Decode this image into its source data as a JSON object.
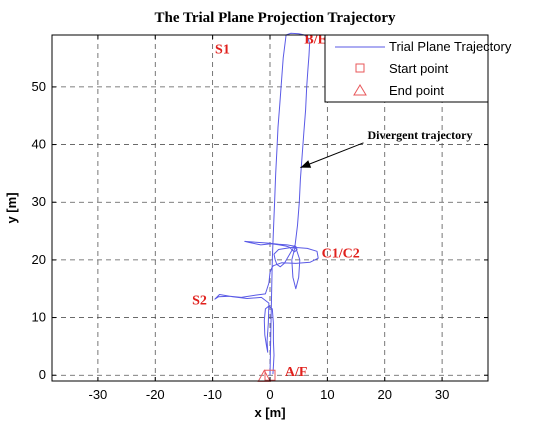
{
  "chart_data": {
    "type": "line",
    "title": "The Trial Plane Projection Trajectory",
    "xlabel": "x [m]",
    "ylabel": "y [m]",
    "xlim": [
      -38,
      38
    ],
    "ylim": [
      -1,
      59
    ],
    "xticks": [
      -30,
      -20,
      -10,
      0,
      10,
      20,
      30
    ],
    "yticks": [
      0,
      10,
      20,
      30,
      40,
      50
    ],
    "grid": true,
    "legend_position": "top-right",
    "colors": {
      "trajectory": "#5a5ae6",
      "markers": "#e8575a",
      "annotation": "#e0201c"
    },
    "series": [
      {
        "name": "Trial Plane Trajectory",
        "x": [
          0.5,
          0.6,
          0.7,
          0.6,
          0.6,
          0.4,
          -0.2,
          -0.8,
          -1.0,
          -0.9,
          -0.6,
          -0.4,
          -0.5,
          -0.3,
          -0.2,
          -1.5,
          -4.0,
          -6.5,
          -8.8,
          -9.6,
          -9.0,
          -7.0,
          -5.0,
          -2.5,
          -0.8,
          -0.2,
          0.0,
          0.3,
          0.6,
          2.0,
          4.5,
          7.0,
          8.4,
          8.2,
          6.5,
          4.0,
          1.5,
          0.7,
          0.9,
          1.2,
          1.8,
          2.5,
          3.2,
          3.9,
          4.3,
          4.6,
          4.7,
          4.3,
          4.0,
          3.4,
          2.8,
          1.6,
          0.2,
          -1.6,
          -3.5,
          -4.4,
          -3.0,
          -1.5,
          0.0,
          1.5,
          3.0,
          4.2,
          4.6,
          5.2,
          5.0,
          4.5,
          4.0,
          3.8,
          4.3,
          4.8,
          5.1,
          5.3,
          5.6,
          5.9,
          6.2,
          6.4,
          6.6,
          6.8,
          6.9,
          6.6,
          6.0,
          5.0,
          3.6,
          2.8,
          2.3,
          2.0,
          1.7,
          1.4,
          1.2,
          1.0,
          0.8,
          0.6,
          0.4,
          0.2,
          0.0
        ],
        "y": [
          0.2,
          1.5,
          3.5,
          6.0,
          9.0,
          11.5,
          12.0,
          11.5,
          9.5,
          7.0,
          5.0,
          4.0,
          6.0,
          9.0,
          12.5,
          13.5,
          13.3,
          13.6,
          14.0,
          13.2,
          13.6,
          13.7,
          13.5,
          13.9,
          14.1,
          16.0,
          17.8,
          18.6,
          19.0,
          19.5,
          19.4,
          19.6,
          20.3,
          21.5,
          22.0,
          22.2,
          21.8,
          21.0,
          20.0,
          19.2,
          18.8,
          19.4,
          20.6,
          21.8,
          22.5,
          22.2,
          21.8,
          21.4,
          21.6,
          22.2,
          22.4,
          22.6,
          22.8,
          22.6,
          23.0,
          23.2,
          23.1,
          23.0,
          22.9,
          22.7,
          22.6,
          22.4,
          21.8,
          20.0,
          17.0,
          15.0,
          17.0,
          20.0,
          22.0,
          26.0,
          30.0,
          34.0,
          38.0,
          42.0,
          46.0,
          50.0,
          53.0,
          55.5,
          57.5,
          58.5,
          59.0,
          59.2,
          59.3,
          59.0,
          55.0,
          51.0,
          47.0,
          43.0,
          39.0,
          35.0,
          30.0,
          25.0,
          20.0,
          10.0,
          0.0
        ]
      }
    ],
    "markers": [
      {
        "name": "Start point",
        "shape": "square",
        "x": 0,
        "y": 0
      },
      {
        "name": "End point",
        "shape": "triangle",
        "x": -1,
        "y": -0.2
      }
    ],
    "annotations": [
      {
        "text": "S1",
        "x": -7.0,
        "y": 55.8,
        "style": "red"
      },
      {
        "text": "B/E",
        "x": 6.0,
        "y": 57.5,
        "style": "red"
      },
      {
        "text": "C1/C2",
        "x": 9.0,
        "y": 20.4,
        "style": "red"
      },
      {
        "text": "S2",
        "x": -11.0,
        "y": 12.3,
        "style": "red"
      },
      {
        "text": "A/F",
        "x": 2.6,
        "y": -0.1,
        "style": "red"
      },
      {
        "text": "Divergent trajectory",
        "x": 17.0,
        "y": 41.0,
        "style": "black",
        "arrow_to": [
          5.3,
          36.0
        ]
      }
    ]
  }
}
